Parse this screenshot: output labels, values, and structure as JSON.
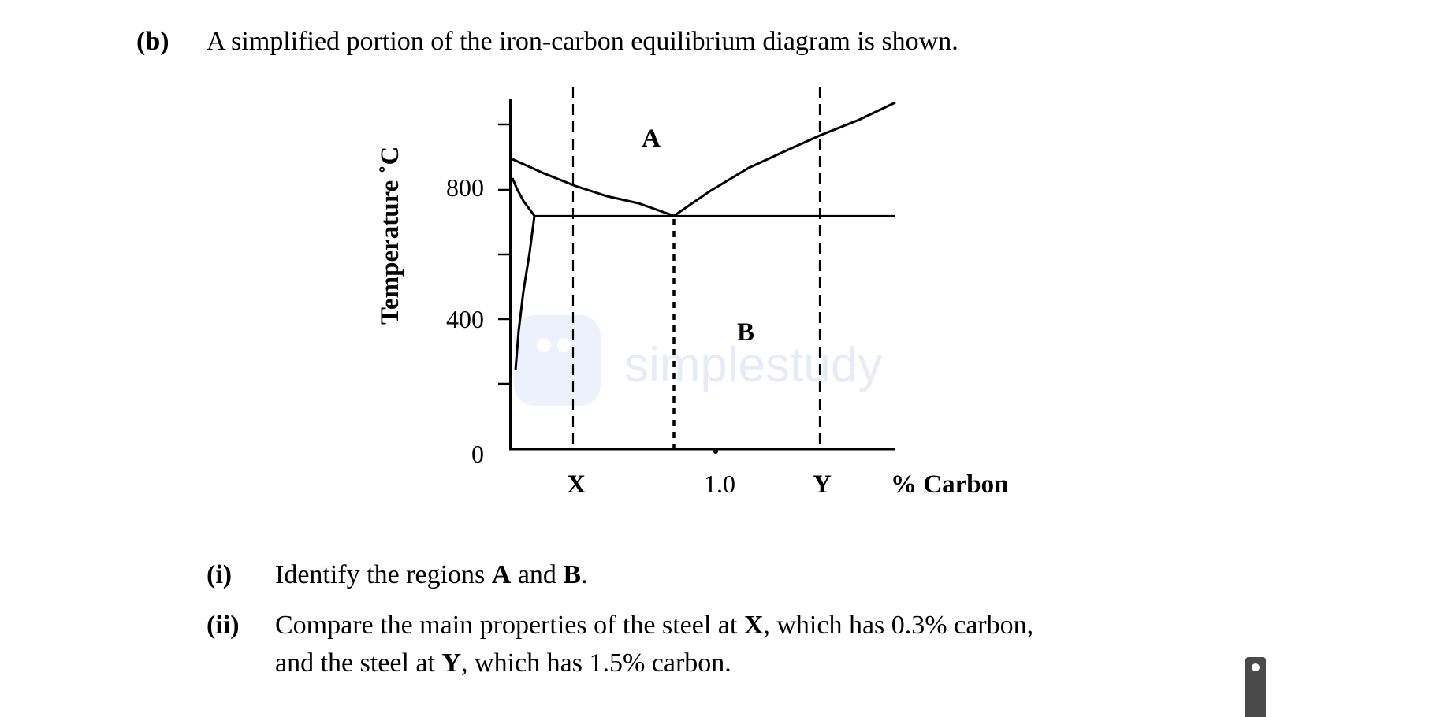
{
  "question": {
    "label": "(b)",
    "text": "A simplified portion of the iron-carbon equilibrium diagram is shown."
  },
  "diagram": {
    "y_axis_label": "Temperature ˚C",
    "x_axis_label": "% Carbon",
    "y_ticks": [
      "800",
      "400",
      "0"
    ],
    "x_labels": {
      "x": "X",
      "one": "1.0",
      "y": "Y"
    },
    "regions": {
      "a": "A",
      "b": "B"
    },
    "watermark": "simplestudy"
  },
  "parts": [
    {
      "num": "(i)",
      "line1": {
        "t1": "Identify the regions ",
        "b1": "A",
        "t2": " and ",
        "b2": "B",
        "t3": "."
      }
    },
    {
      "num": "(ii)",
      "line1": {
        "t1": "Compare the main properties of the steel at ",
        "b1": "X",
        "t2": ", which has 0.3% carbon,"
      },
      "line2": {
        "t1": "and the steel at ",
        "b1": "Y",
        "t2": ", which has 1.5% carbon."
      }
    }
  ]
}
